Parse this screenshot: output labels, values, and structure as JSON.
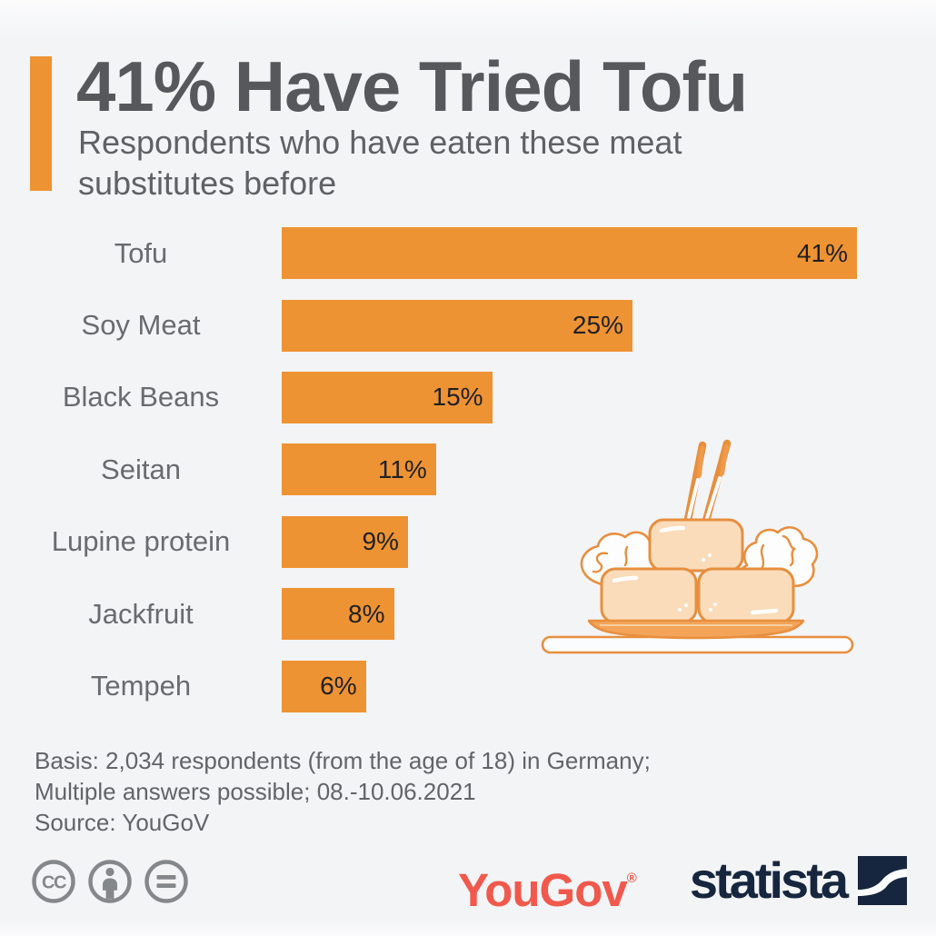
{
  "header": {
    "title": "41% Have Tried Tofu",
    "subtitle": "Respondents who have eaten these meat substitutes before"
  },
  "chart_data": {
    "type": "bar",
    "orientation": "horizontal",
    "title": "41% Have Tried Tofu",
    "subtitle": "Respondents who have eaten these meat substitutes before",
    "categories": [
      "Tofu",
      "Soy Meat",
      "Black Beans",
      "Seitan",
      "Lupine protein",
      "Jackfruit",
      "Tempeh"
    ],
    "values": [
      41,
      25,
      15,
      11,
      9,
      8,
      6
    ],
    "value_labels": [
      "41%",
      "25%",
      "15%",
      "11%",
      "9%",
      "8%",
      "6%"
    ],
    "unit": "%",
    "xmax": 41,
    "bar_color": "#EE9333",
    "value_label_position": "inside-end",
    "grid": false,
    "legend": false,
    "xlabel": "",
    "ylabel": ""
  },
  "illustration": {
    "name": "tofu-cubes-on-plate-with-chopsticks"
  },
  "footer": {
    "basis_lines": [
      "Basis: 2,034 respondents (from the age of 18) in Germany;",
      "Multiple answers possible; 08.-10.06.2021",
      "Source: YouGoV"
    ],
    "license_icons": [
      "cc-icon",
      "attribution-icon",
      "no-derivatives-icon"
    ],
    "yougov_logo_text": "YouGov",
    "yougov_registered_mark": "®",
    "statista_logo_text": "statista"
  },
  "colors": {
    "accent_orange": "#EE9333",
    "title_gray": "#57585B",
    "subtitle_gray": "#606164",
    "label_gray": "#6A6B6E",
    "value_dark": "#1F2023",
    "footer_gray": "#636468",
    "license_gray": "#84888B",
    "yougov_red": "#F0594B",
    "statista_navy": "#16263E",
    "background": "#F3F4F6"
  }
}
